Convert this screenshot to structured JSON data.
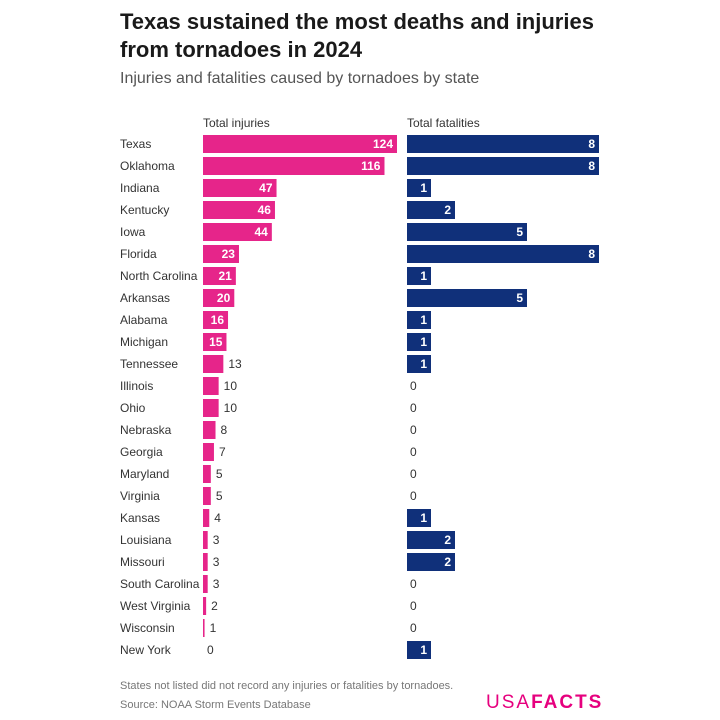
{
  "title": "Texas sustained the most deaths and injuries from tornadoes in 2024",
  "subtitle": "Injuries and fatalities caused by tornadoes by state",
  "footnote": "States not listed did not record any injuries or fatalities by tornadoes.",
  "source": "Source: NOAA Storm Events Database",
  "logo": {
    "light": "USA",
    "bold": "FACTS"
  },
  "colors": {
    "injuries": "#e6258a",
    "fatalities": "#10307a",
    "text": "#333333"
  },
  "chart_data": {
    "type": "bar",
    "orientation": "horizontal",
    "categories": [
      "Texas",
      "Oklahoma",
      "Indiana",
      "Kentucky",
      "Iowa",
      "Florida",
      "North Carolina",
      "Arkansas",
      "Alabama",
      "Michigan",
      "Tennessee",
      "Illinois",
      "Ohio",
      "Nebraska",
      "Georgia",
      "Maryland",
      "Virginia",
      "Kansas",
      "Louisiana",
      "Missouri",
      "South Carolina",
      "West Virginia",
      "Wisconsin",
      "New York"
    ],
    "series": [
      {
        "name": "Total injuries",
        "values": [
          124,
          116,
          47,
          46,
          44,
          23,
          21,
          20,
          16,
          15,
          13,
          10,
          10,
          8,
          7,
          5,
          5,
          4,
          3,
          3,
          3,
          2,
          1,
          0
        ]
      },
      {
        "name": "Total fatalities",
        "values": [
          8,
          8,
          1,
          2,
          5,
          8,
          1,
          5,
          1,
          1,
          1,
          0,
          0,
          0,
          0,
          0,
          0,
          1,
          2,
          2,
          0,
          0,
          0,
          1
        ]
      }
    ]
  }
}
